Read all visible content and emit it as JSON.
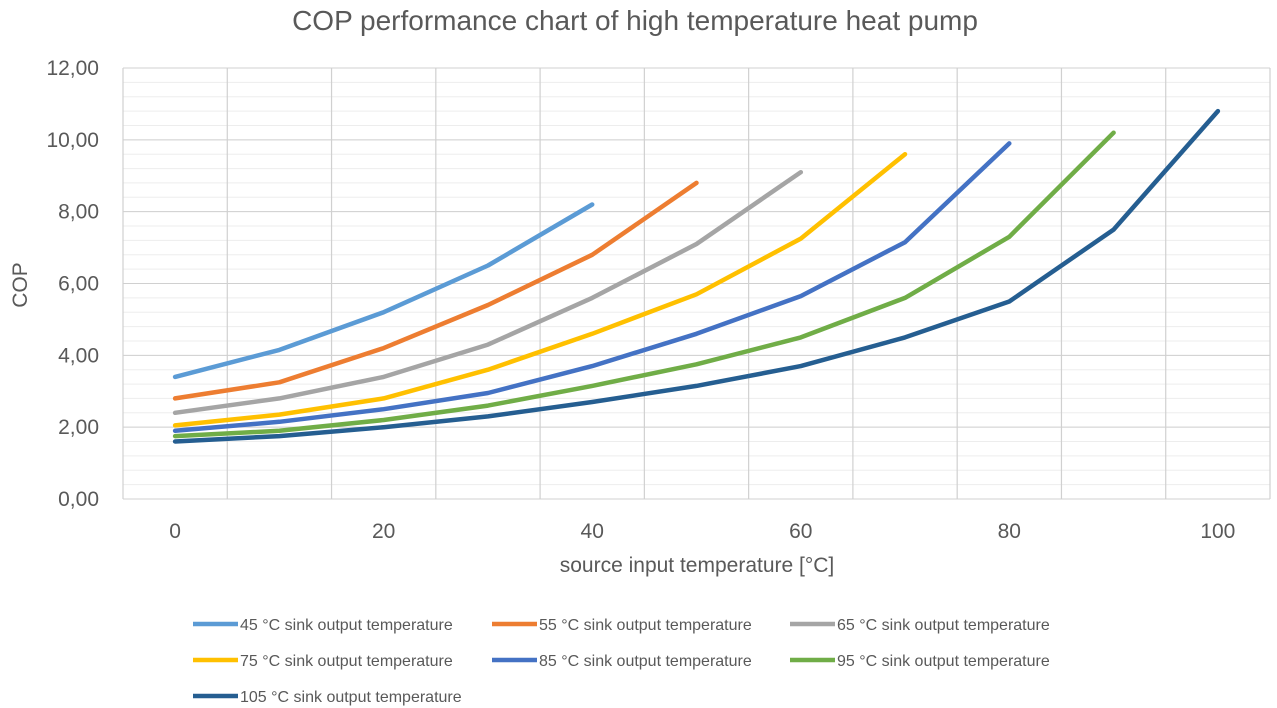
{
  "chart_data": {
    "type": "line",
    "title": "COP performance chart of high temperature heat pump",
    "xlabel": "source input temperature  [°C]",
    "ylabel": "COP",
    "xlim": [
      -5,
      105
    ],
    "ylim": [
      0,
      12
    ],
    "x_ticks": [
      "0",
      "20",
      "40",
      "60",
      "80",
      "100"
    ],
    "y_ticks": [
      "0,00",
      "2,00",
      "4,00",
      "6,00",
      "8,00",
      "10,00",
      "12,00"
    ],
    "grid": true,
    "legend_position": "bottom",
    "series": [
      {
        "name": "45 °C sink output temperature",
        "color": "#5B9BD5",
        "x": [
          0,
          10,
          20,
          30,
          40
        ],
        "y": [
          3.4,
          4.15,
          5.2,
          6.5,
          8.2
        ]
      },
      {
        "name": "55 °C sink output temperature",
        "color": "#ED7D31",
        "x": [
          0,
          10,
          20,
          30,
          40,
          50
        ],
        "y": [
          2.8,
          3.25,
          4.2,
          5.4,
          6.8,
          8.8
        ]
      },
      {
        "name": "65 °C sink output temperature",
        "color": "#A5A5A5",
        "x": [
          0,
          10,
          20,
          30,
          40,
          50,
          60
        ],
        "y": [
          2.4,
          2.8,
          3.4,
          4.3,
          5.6,
          7.1,
          9.1
        ]
      },
      {
        "name": "75 °C sink output temperature",
        "color": "#FFC000",
        "x": [
          0,
          10,
          20,
          30,
          40,
          50,
          60,
          70
        ],
        "y": [
          2.05,
          2.35,
          2.8,
          3.6,
          4.6,
          5.7,
          7.25,
          9.6
        ]
      },
      {
        "name": "85 °C sink output temperature",
        "color": "#4472C4",
        "x": [
          0,
          10,
          20,
          30,
          40,
          50,
          60,
          70,
          80
        ],
        "y": [
          1.9,
          2.15,
          2.5,
          2.95,
          3.7,
          4.6,
          5.65,
          7.15,
          9.9
        ]
      },
      {
        "name": "95 °C sink output temperature",
        "color": "#70AD47",
        "x": [
          0,
          10,
          20,
          30,
          40,
          50,
          60,
          70,
          80,
          90
        ],
        "y": [
          1.75,
          1.9,
          2.2,
          2.6,
          3.15,
          3.75,
          4.5,
          5.6,
          7.3,
          10.2
        ]
      },
      {
        "name": "105 °C sink output temperature",
        "color": "#255E91",
        "x": [
          0,
          10,
          20,
          30,
          40,
          50,
          60,
          70,
          80,
          90,
          100
        ],
        "y": [
          1.6,
          1.75,
          2.0,
          2.3,
          2.7,
          3.15,
          3.7,
          4.5,
          5.5,
          7.5,
          10.8
        ]
      }
    ]
  }
}
